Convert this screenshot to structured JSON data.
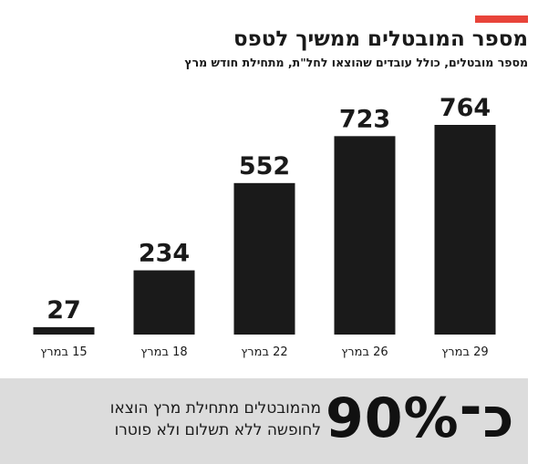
{
  "header": {
    "title": "מספר המובטלים ממשיך לטפס",
    "subtitle": "מספר מובטלים, כולל עובדים שהוצאו לחל\"ת, מתחילת חודש מרץ"
  },
  "colors": {
    "accent": "#e8443a",
    "bar": "#1a1a1a",
    "footer_bg": "#dcdcdc"
  },
  "chart_data": {
    "type": "bar",
    "categories": [
      "29 במרץ",
      "26 במרץ",
      "22 במרץ",
      "18 במרץ",
      "15 במרץ"
    ],
    "values": [
      764,
      723,
      552,
      234,
      27
    ],
    "data_labels": [
      "764",
      "723",
      "552",
      "234",
      "27"
    ],
    "title": "מספר המובטלים ממשיך לטפס",
    "subtitle": "מספר מובטלים, כולל עובדים שהוצאו לחל\"ת, מתחילת חודש מרץ",
    "xlabel": "",
    "ylabel": "",
    "ylim": [
      0,
      764
    ],
    "grid": false,
    "legend": "none"
  },
  "footer": {
    "stat": "כ־90%",
    "line1": "מהמובטלים מתחילת מרץ הוצאו",
    "line2": "לחופשה ללא תשלום ולא פוטרו"
  }
}
